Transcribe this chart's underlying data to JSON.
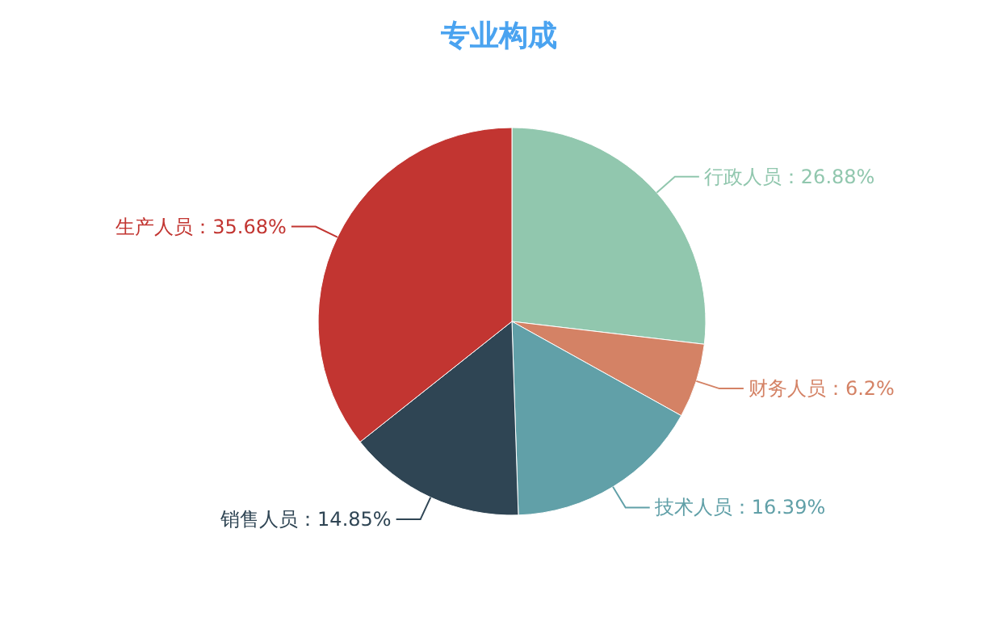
{
  "chart_data": {
    "type": "pie",
    "title": "专业构成",
    "categories": [
      "行政人员",
      "财务人员",
      "技术人员",
      "销售人员",
      "生产人员"
    ],
    "values": [
      26.88,
      6.2,
      16.39,
      14.85,
      35.68
    ],
    "value_labels": [
      "：26.88%",
      "：6.2%",
      "：16.39%",
      "：14.85%",
      "：35.68%"
    ],
    "colors": [
      "#91c7ae",
      "#d48265",
      "#61a0a8",
      "#2f4554",
      "#c23531"
    ]
  }
}
